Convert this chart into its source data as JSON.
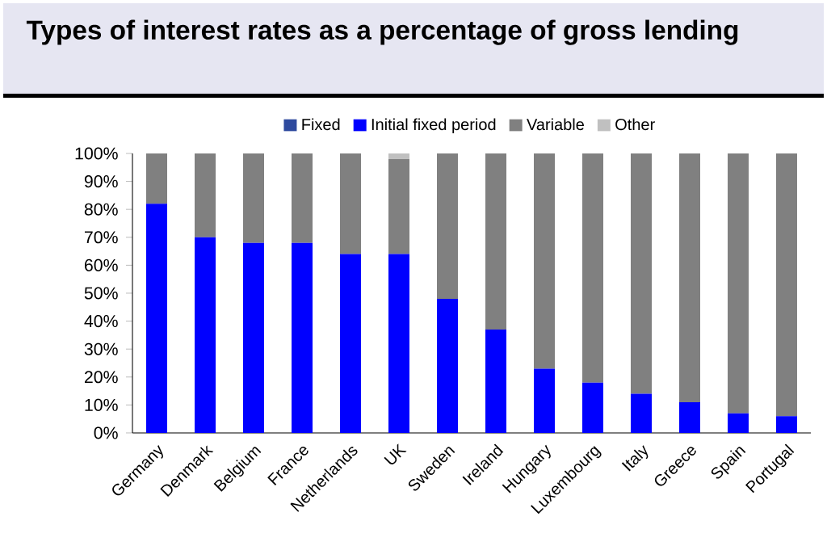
{
  "chart_data": {
    "type": "bar",
    "title": "Types of interest rates as a percentage of gross lending",
    "categories": [
      "Germany",
      "Denmark",
      "Belgium",
      "France",
      "Netherlands",
      "UK",
      "Sweden",
      "Ireland",
      "Hungary",
      "Luxembourg",
      "Italy",
      "Greece",
      "Spain",
      "Portugal"
    ],
    "stacked": true,
    "series": [
      {
        "name": "Fixed",
        "color": "#2e4a9e",
        "values": [
          0,
          0,
          0,
          0,
          0,
          0,
          0,
          0,
          0,
          0,
          0,
          0,
          0,
          0
        ]
      },
      {
        "name": "Initial fixed period",
        "color": "#0000ff",
        "values": [
          82,
          70,
          68,
          68,
          64,
          64,
          48,
          37,
          23,
          18,
          14,
          11,
          7,
          6
        ]
      },
      {
        "name": "Variable",
        "color": "#808080",
        "values": [
          18,
          30,
          32,
          32,
          36,
          34,
          52,
          63,
          77,
          82,
          86,
          89,
          93,
          94
        ]
      },
      {
        "name": "Other",
        "color": "#c0c0c0",
        "values": [
          0,
          0,
          0,
          0,
          0,
          2,
          0,
          0,
          0,
          0,
          0,
          0,
          0,
          0
        ]
      }
    ],
    "ylim": [
      0,
      100
    ],
    "yticks": [
      {
        "value": 0,
        "label": "0%"
      },
      {
        "value": 10,
        "label": "10%"
      },
      {
        "value": 20,
        "label": "20%"
      },
      {
        "value": 30,
        "label": "30%"
      },
      {
        "value": 40,
        "label": "40%"
      },
      {
        "value": 50,
        "label": "50%"
      },
      {
        "value": 60,
        "label": "60%"
      },
      {
        "value": 70,
        "label": "70%"
      },
      {
        "value": 80,
        "label": "80%"
      },
      {
        "value": 90,
        "label": "90%"
      },
      {
        "value": 100,
        "label": "100%"
      }
    ],
    "grid": false,
    "legend": "top"
  }
}
